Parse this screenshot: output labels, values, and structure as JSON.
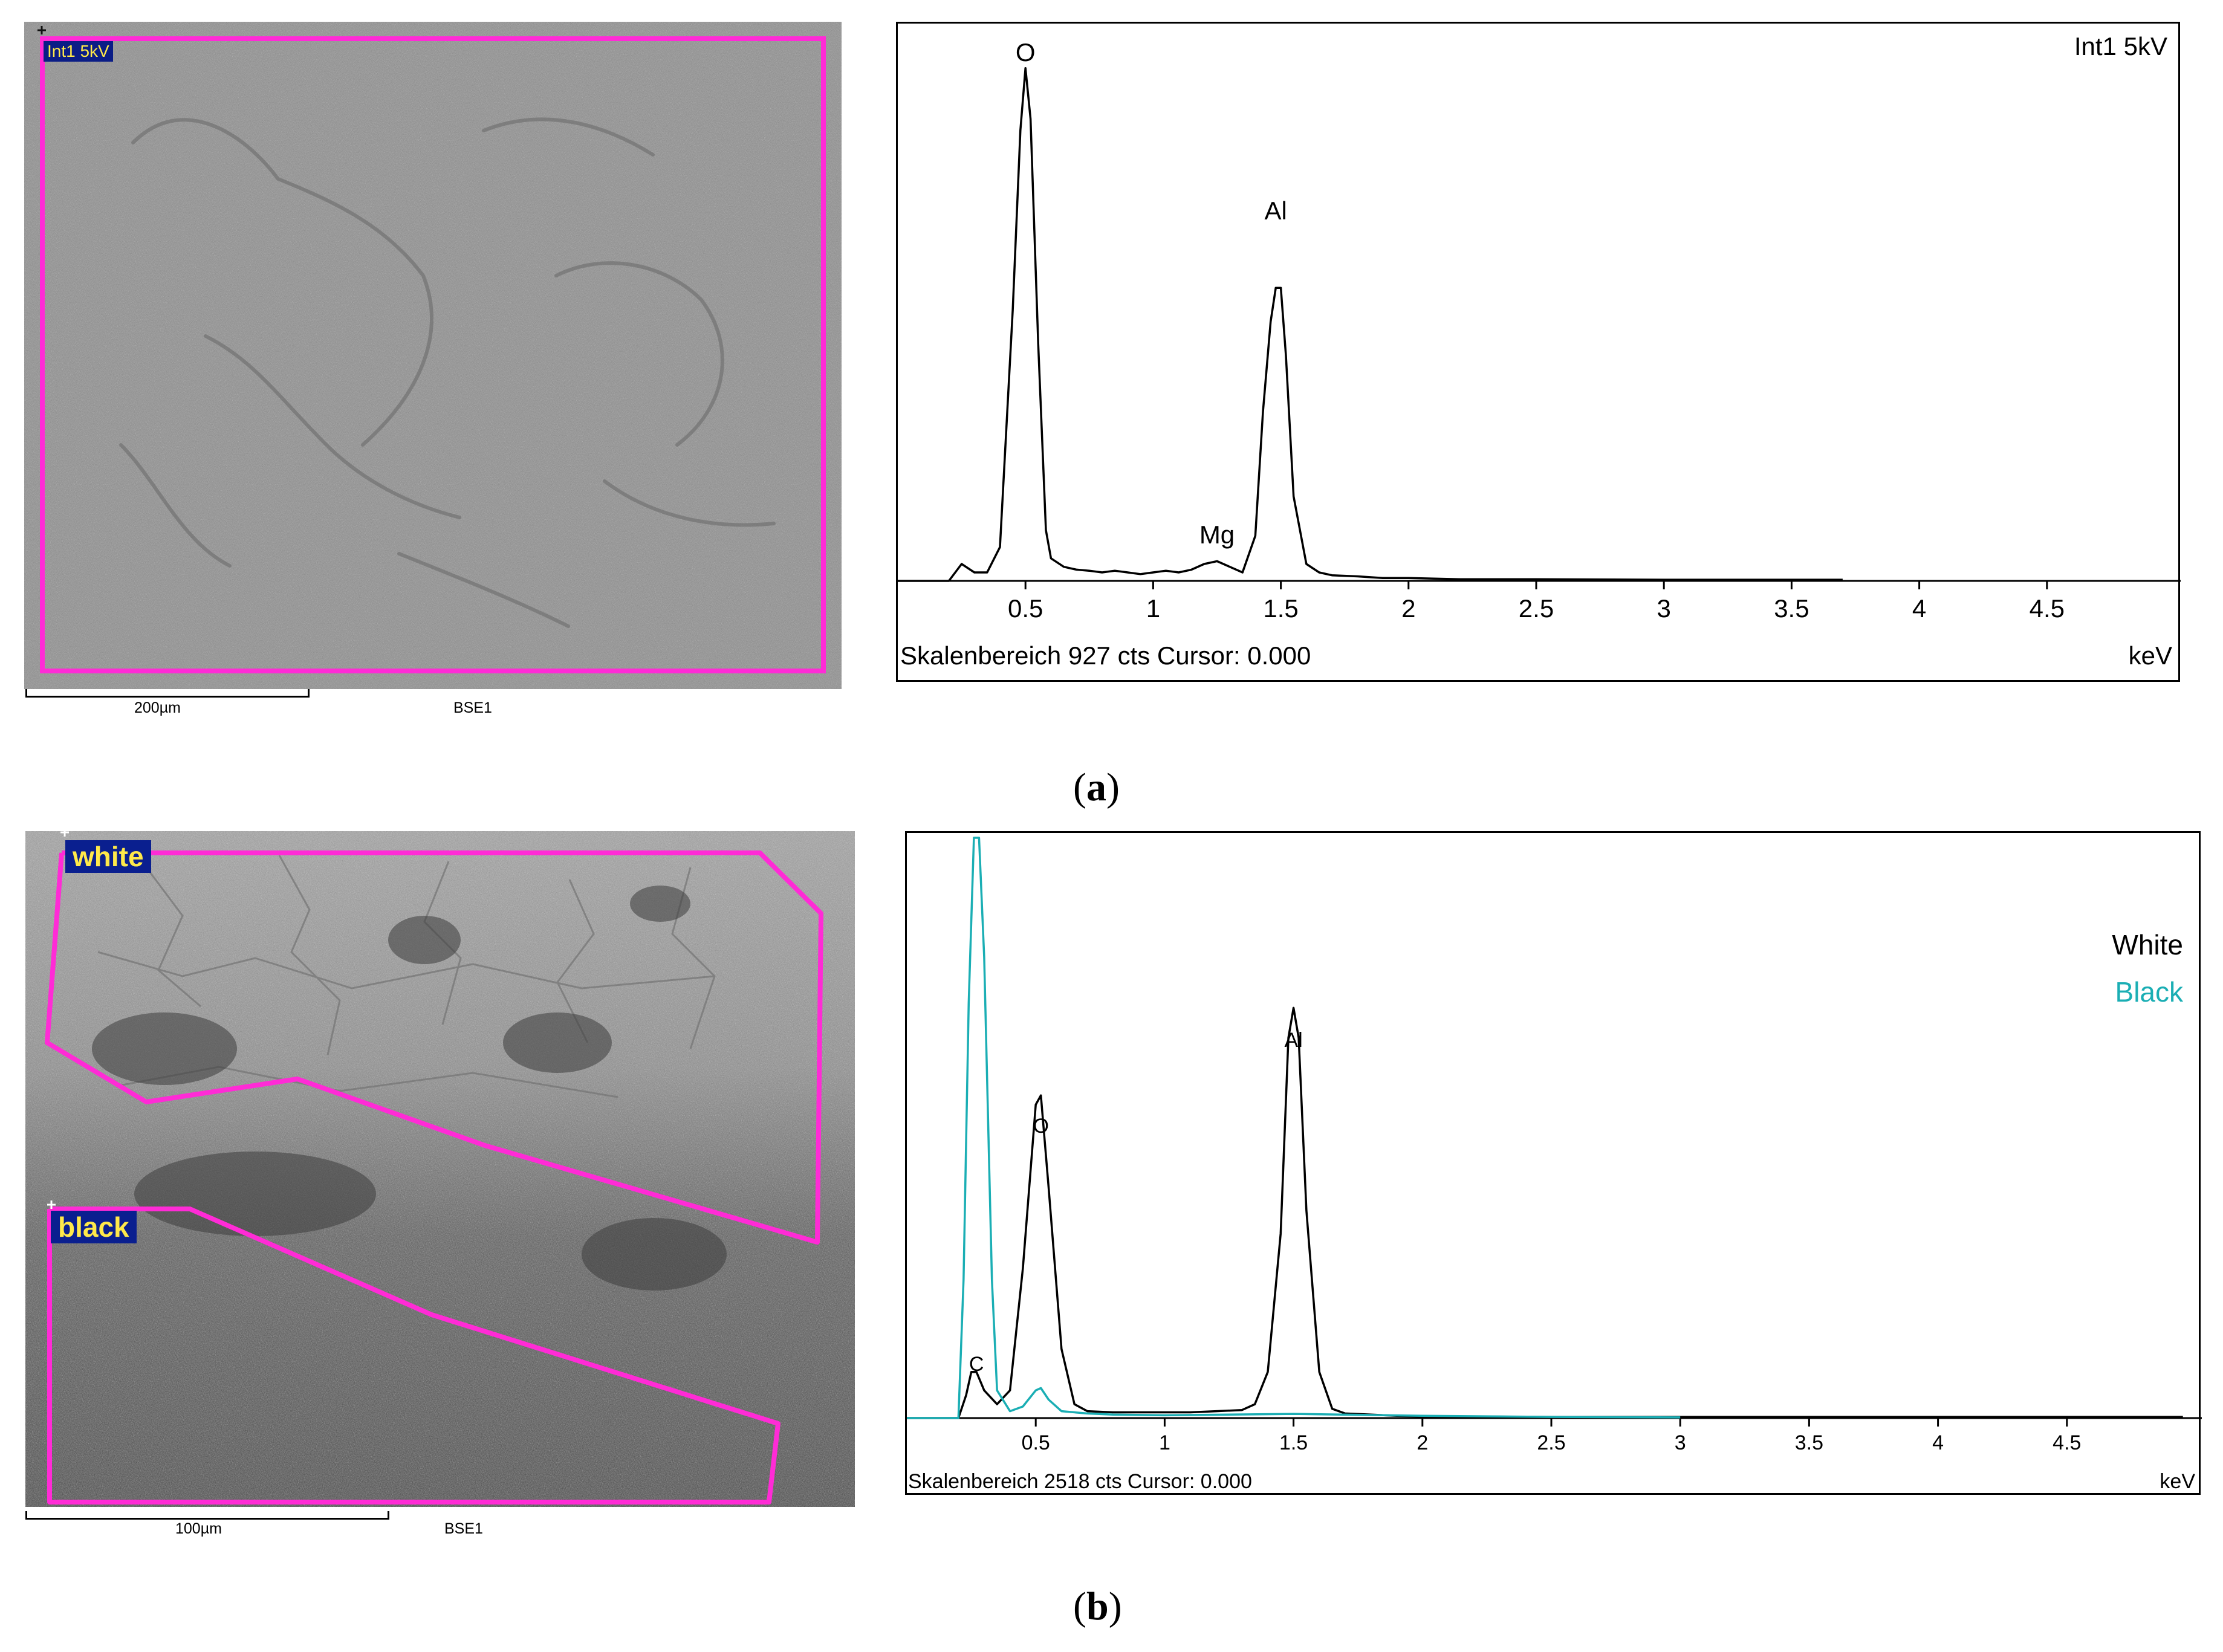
{
  "panel_a": {
    "caption_open": "(",
    "caption_letter": "a",
    "caption_close": ")",
    "image": {
      "roi_label": "Int1 5kV",
      "scale_label": "200µm",
      "detector_label": "BSE1",
      "roi_color": "#ff2bd6"
    },
    "spectrum": {
      "corner_label": "Int1 5kV",
      "footer_left": "Skalenbereich 927 cts Cursor: 0.000",
      "footer_right": "keV",
      "peak_labels": [
        "O",
        "Al",
        "Mg"
      ]
    }
  },
  "panel_b": {
    "caption_open": "(",
    "caption_letter": "b",
    "caption_close": ")",
    "image": {
      "roi_labels": [
        "white",
        "black"
      ],
      "scale_label": "100µm",
      "detector_label": "BSE1",
      "roi_color": "#ff2bd6"
    },
    "spectrum": {
      "legend": [
        "White",
        "Black"
      ],
      "footer_left": "Skalenbereich 2518 cts Cursor: 0.000",
      "footer_right": "keV",
      "peak_labels": [
        "Al",
        "O",
        "C"
      ]
    }
  },
  "colors": {
    "white_series": "#000000",
    "black_series": "#1aaeb4"
  },
  "chart_data": [
    {
      "type": "line",
      "title": "Int1 5kV",
      "xlabel": "keV",
      "ylabel": "",
      "xlim": [
        0,
        5
      ],
      "ylim": [
        0,
        927
      ],
      "x_ticks": [
        0.5,
        1,
        1.5,
        2,
        2.5,
        3,
        3.5,
        4,
        4.5
      ],
      "x_tick_labels": [
        "0.5",
        "1",
        "1.5",
        "2",
        "2.5",
        "3",
        "3.5",
        "4",
        "4.5"
      ],
      "grid": false,
      "series": [
        {
          "x": [
            0.0,
            0.05,
            0.1,
            0.15,
            0.2,
            0.25,
            0.3,
            0.35,
            0.4,
            0.45,
            0.48,
            0.5,
            0.52,
            0.55,
            0.58,
            0.6,
            0.65,
            0.7,
            0.75,
            0.8,
            0.85,
            0.9,
            0.95,
            1.0,
            1.05,
            1.1,
            1.15,
            1.2,
            1.25,
            1.3,
            1.35,
            1.4,
            1.43,
            1.46,
            1.48,
            1.5,
            1.52,
            1.55,
            1.6,
            1.65,
            1.7,
            1.8,
            1.9,
            2.0,
            2.2,
            2.5,
            3.0,
            3.5,
            3.7
          ],
          "y": [
            0,
            0,
            0,
            0,
            0,
            30,
            15,
            15,
            60,
            480,
            800,
            910,
            820,
            420,
            90,
            40,
            25,
            20,
            18,
            15,
            18,
            15,
            12,
            15,
            18,
            15,
            20,
            30,
            35,
            25,
            15,
            80,
            300,
            460,
            520,
            520,
            400,
            150,
            30,
            15,
            10,
            8,
            5,
            5,
            3,
            3,
            2,
            2,
            2
          ]
        }
      ],
      "annotations": [
        {
          "text": "O",
          "x": 0.5
        },
        {
          "text": "Al",
          "x": 1.48
        },
        {
          "text": "Mg",
          "x": 1.25
        }
      ]
    },
    {
      "type": "line",
      "title": "",
      "xlabel": "keV",
      "ylabel": "",
      "xlim": [
        0,
        5
      ],
      "ylim": [
        0,
        2518
      ],
      "x_ticks": [
        0.5,
        1,
        1.5,
        2,
        2.5,
        3,
        3.5,
        4,
        4.5
      ],
      "x_tick_labels": [
        "0.5",
        "1",
        "1.5",
        "2",
        "2.5",
        "3",
        "3.5",
        "4",
        "4.5"
      ],
      "grid": false,
      "legend": "top-right",
      "series": [
        {
          "name": "White",
          "x": [
            0.0,
            0.05,
            0.1,
            0.15,
            0.2,
            0.23,
            0.25,
            0.27,
            0.3,
            0.35,
            0.4,
            0.45,
            0.5,
            0.52,
            0.55,
            0.6,
            0.65,
            0.7,
            0.8,
            0.9,
            1.0,
            1.1,
            1.2,
            1.3,
            1.35,
            1.4,
            1.45,
            1.48,
            1.5,
            1.52,
            1.55,
            1.6,
            1.65,
            1.7,
            1.8,
            1.9,
            2.0,
            2.5,
            3.0,
            3.5,
            4.0,
            4.5,
            4.95
          ],
          "y": [
            0,
            0,
            0,
            0,
            0,
            100,
            200,
            200,
            120,
            60,
            120,
            650,
            1360,
            1400,
            1000,
            300,
            60,
            30,
            25,
            25,
            25,
            25,
            30,
            35,
            60,
            200,
            800,
            1650,
            1780,
            1650,
            900,
            200,
            40,
            20,
            15,
            10,
            8,
            5,
            5,
            5,
            5,
            5,
            5
          ]
        },
        {
          "name": "Black",
          "x": [
            0.0,
            0.05,
            0.1,
            0.15,
            0.2,
            0.22,
            0.24,
            0.26,
            0.28,
            0.3,
            0.33,
            0.35,
            0.4,
            0.45,
            0.5,
            0.52,
            0.55,
            0.6,
            0.7,
            0.8,
            1.0,
            1.5,
            2.0,
            2.5,
            3.0
          ],
          "y": [
            0,
            0,
            0,
            0,
            0,
            600,
            1800,
            2518,
            2518,
            2000,
            600,
            120,
            30,
            50,
            120,
            130,
            80,
            30,
            20,
            15,
            12,
            18,
            10,
            5,
            3
          ]
        }
      ],
      "annotations": [
        {
          "text": "Al",
          "x": 1.5
        },
        {
          "text": "O",
          "x": 0.52
        },
        {
          "text": "C",
          "x": 0.27
        }
      ]
    }
  ]
}
